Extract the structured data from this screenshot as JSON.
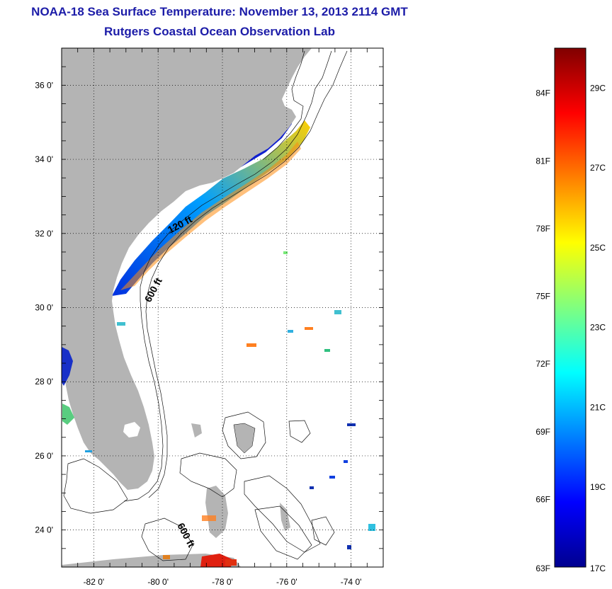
{
  "title_line1": "NOAA-18 Sea Surface Temperature:  November 13, 2013 2114 GMT",
  "title_line2": "Rutgers Coastal Ocean Observation Lab",
  "map": {
    "lon_range": [
      -83,
      -73
    ],
    "lat_range": [
      23,
      37
    ],
    "x_ticks": [
      {
        "value": -82,
        "label": "-82 0'"
      },
      {
        "value": -80,
        "label": "-80 0'"
      },
      {
        "value": -78,
        "label": "-78 0'"
      },
      {
        "value": -76,
        "label": "-76 0'"
      },
      {
        "value": -74,
        "label": "-74 0'"
      }
    ],
    "y_ticks": [
      {
        "value": 36,
        "label": "36 0'"
      },
      {
        "value": 34,
        "label": "34 0'"
      },
      {
        "value": 32,
        "label": "32 0'"
      },
      {
        "value": 30,
        "label": "30 0'"
      },
      {
        "value": 28,
        "label": "28 0'"
      },
      {
        "value": 26,
        "label": "26 0'"
      },
      {
        "value": 24,
        "label": "24 0'"
      }
    ],
    "grid": "dotted",
    "contour_labels": [
      "120 ft",
      "600 ft",
      "600 ft"
    ],
    "land_color": "#b4b4b4"
  },
  "colorbar": {
    "colormap": "jet",
    "range_c": [
      17,
      30
    ],
    "range_f": [
      63,
      86
    ],
    "f_labels": [
      "84F",
      "81F",
      "78F",
      "75F",
      "72F",
      "69F",
      "66F",
      "63F"
    ],
    "c_labels": [
      "29C",
      "27C",
      "25C",
      "23C",
      "21C",
      "19C",
      "17C"
    ]
  }
}
